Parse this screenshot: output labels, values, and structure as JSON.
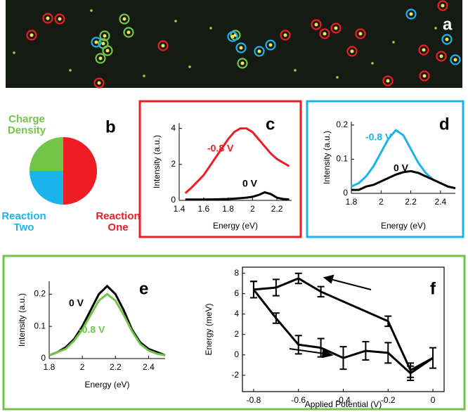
{
  "image_panel": {
    "label": "a"
  },
  "chart_data": [
    {
      "type": "pie",
      "panel_label": "b",
      "categories": [
        "Reaction One",
        "Reaction Two",
        "Charge Density"
      ],
      "values": [
        50,
        25,
        25
      ],
      "colors": [
        "#ee1c24",
        "#1bb4ea",
        "#72c549"
      ]
    },
    {
      "type": "line",
      "panel_label": "c",
      "x_label": "Energy (eV)",
      "y_label": "Intensity (a.u.)",
      "x": [
        1.45,
        1.5,
        1.6,
        1.7,
        1.8,
        1.85,
        1.9,
        1.95,
        2.0,
        2.05,
        2.1,
        2.15,
        2.2,
        2.25,
        2.3
      ],
      "series": [
        {
          "name": "-0.8 V",
          "color": "#ee1c24",
          "values": [
            0.4,
            0.7,
            1.4,
            2.4,
            3.4,
            3.8,
            4.0,
            4.0,
            3.8,
            3.4,
            3.0,
            2.6,
            2.3,
            2.1,
            1.9
          ]
        },
        {
          "name": "0 V",
          "color": "#000000",
          "values": [
            0.05,
            0.05,
            0.05,
            0.06,
            0.08,
            0.1,
            0.12,
            0.15,
            0.2,
            0.3,
            0.45,
            0.35,
            0.15,
            0.08,
            0.05
          ]
        }
      ],
      "xlim": [
        1.4,
        2.32
      ],
      "ylim": [
        0,
        4.3
      ],
      "xticks": [
        1.4,
        1.6,
        1.8,
        2,
        2.2
      ],
      "yticks": [
        0,
        2,
        4
      ]
    },
    {
      "type": "line",
      "panel_label": "d",
      "x_label": "Energy (eV)",
      "y_label": "Intensity (a.u.)",
      "x": [
        1.8,
        1.85,
        1.9,
        1.95,
        2.0,
        2.05,
        2.1,
        2.15,
        2.2,
        2.25,
        2.3,
        2.35,
        2.4,
        2.45,
        2.5
      ],
      "series": [
        {
          "name": "-0.8 V",
          "color": "#1bb4ea",
          "values": [
            0.02,
            0.03,
            0.05,
            0.08,
            0.12,
            0.16,
            0.185,
            0.17,
            0.13,
            0.09,
            0.06,
            0.04,
            0.03,
            0.02,
            0.015
          ]
        },
        {
          "name": "0 V",
          "color": "#000000",
          "values": [
            0.01,
            0.01,
            0.02,
            0.025,
            0.035,
            0.045,
            0.055,
            0.062,
            0.065,
            0.06,
            0.05,
            0.04,
            0.03,
            0.02,
            0.015
          ]
        }
      ],
      "xlim": [
        1.8,
        2.5
      ],
      "ylim": [
        0,
        0.21
      ],
      "xticks": [
        1.8,
        2,
        2.2,
        2.4
      ],
      "yticks": [
        0,
        0.1,
        0.2
      ]
    },
    {
      "type": "line",
      "panel_label": "e",
      "x_label": "Energy (eV)",
      "y_label": "Intensity (a.u.)",
      "x": [
        1.8,
        1.85,
        1.9,
        1.95,
        2.0,
        2.05,
        2.1,
        2.15,
        2.2,
        2.25,
        2.3,
        2.35,
        2.4,
        2.45,
        2.5
      ],
      "series": [
        {
          "name": "0 V",
          "color": "#000000",
          "values": [
            0.01,
            0.02,
            0.035,
            0.06,
            0.1,
            0.15,
            0.2,
            0.225,
            0.2,
            0.15,
            0.09,
            0.05,
            0.03,
            0.02,
            0.01
          ]
        },
        {
          "name": "-0.8 V",
          "color": "#72c549",
          "values": [
            0.01,
            0.02,
            0.03,
            0.055,
            0.09,
            0.135,
            0.18,
            0.2,
            0.18,
            0.135,
            0.085,
            0.045,
            0.025,
            0.015,
            0.01
          ]
        }
      ],
      "xlim": [
        1.8,
        2.5
      ],
      "ylim": [
        0,
        0.24
      ],
      "xticks": [
        1.8,
        2,
        2.2,
        2.4
      ],
      "yticks": [
        0,
        0.1,
        0.2
      ]
    },
    {
      "type": "errorline",
      "panel_label": "f",
      "x_label": "Applied Potential (V)",
      "y_label": "Energy (meV)",
      "frame": true,
      "series": [
        {
          "color": "#000000",
          "x": [
            -0.8,
            -0.7,
            -0.6,
            -0.5,
            -0.4,
            -0.3,
            -0.2,
            -0.1,
            0,
            -0.1,
            -0.2,
            -0.5,
            -0.6,
            -0.7,
            -0.8
          ],
          "values": [
            6.4,
            3.6,
            1.0,
            0.7,
            -0.3,
            0.4,
            0.2,
            -1.8,
            -0.3,
            -1.5,
            3.3,
            6.2,
            7.5,
            6.6,
            6.4
          ],
          "errors": [
            0.8,
            0.5,
            0.9,
            0.9,
            1.1,
            0.9,
            1.0,
            0.7,
            1.0,
            0.7,
            0.5,
            0.5,
            0.5,
            0.8,
            0.8
          ]
        }
      ],
      "xlim": [
        -0.85,
        0.05
      ],
      "ylim": [
        -3.6,
        8.6
      ],
      "xticks": [
        -0.8,
        -0.6,
        -0.4,
        -0.2,
        0
      ],
      "yticks": [
        -2,
        0,
        2,
        4,
        6,
        8
      ]
    }
  ]
}
